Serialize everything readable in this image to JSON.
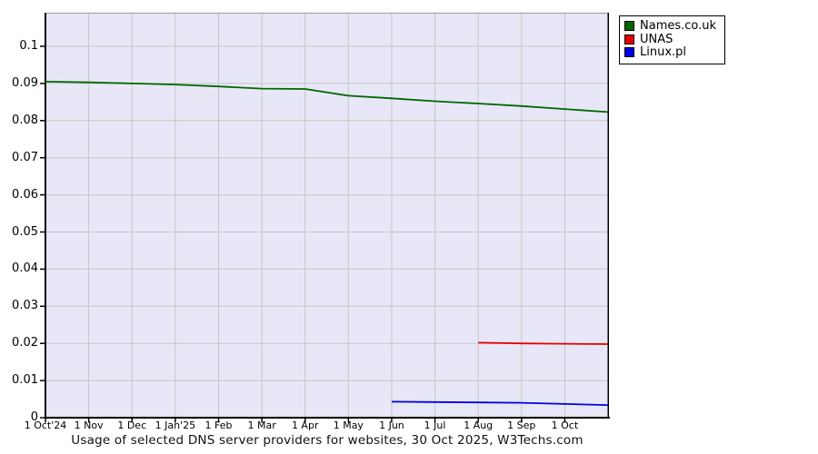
{
  "title": "Usage of selected DNS server providers for websites, 30 Oct 2025, W3Techs.com",
  "legend": {
    "items": [
      {
        "label": "Names.co.uk",
        "color": "#006600"
      },
      {
        "label": "UNAS",
        "color": "#e60000"
      },
      {
        "label": "Linux.pl",
        "color": "#0000e6"
      }
    ]
  },
  "colors": {
    "page_bg": "#ffffff",
    "plot_bg": "#e7e7f7",
    "grid": "#c6c6c6",
    "axis": "#000000",
    "plot_top_border": "#9a9a9a"
  },
  "chart_data": {
    "type": "line",
    "title": "Usage of selected DNS server providers for websites, 30 Oct 2025, W3Techs.com",
    "grid": true,
    "legend_position": "top-right",
    "x_axis": {
      "unit": "months since 1 Oct 2024",
      "tick_positions": [
        0,
        1,
        2,
        3,
        4,
        5,
        6,
        7,
        8,
        9,
        10,
        11,
        12
      ],
      "tick_labels": [
        "1 Oct'24",
        "1 Nov",
        "1 Dec",
        "1 Jan'25",
        "1 Feb",
        "1 Mar",
        "1 Apr",
        "1 May",
        "1 Jun",
        "1 Jul",
        "1 Aug",
        "1 Sep",
        "1 Oct"
      ],
      "max": 13,
      "end_date": "30 Oct 2025"
    },
    "y_axis": {
      "tick_values": [
        0,
        0.01,
        0.02,
        0.03,
        0.04,
        0.05,
        0.06,
        0.07,
        0.08,
        0.09,
        0.1
      ],
      "tick_labels": [
        "0",
        "0.01",
        "0.02",
        "0.03",
        "0.04",
        "0.05",
        "0.06",
        "0.07",
        "0.08",
        "0.09",
        "0.1"
      ],
      "range": [
        0,
        0.109
      ]
    },
    "series": [
      {
        "name": "Names.co.uk",
        "color": "#006600",
        "x": [
          0,
          1,
          2,
          3,
          4,
          5,
          6,
          7,
          8,
          9,
          10,
          11,
          12,
          13
        ],
        "values": [
          0.0905,
          0.0903,
          0.09,
          0.0897,
          0.0892,
          0.0886,
          0.0885,
          0.0867,
          0.086,
          0.0852,
          0.0846,
          0.0839,
          0.0831,
          0.0823
        ]
      },
      {
        "name": "UNAS",
        "color": "#e60000",
        "x": [
          10,
          11,
          12,
          13
        ],
        "values": [
          0.0202,
          0.02,
          0.0199,
          0.0198
        ]
      },
      {
        "name": "Linux.pl",
        "color": "#0000e6",
        "x": [
          8,
          9,
          10,
          11,
          12,
          13
        ],
        "values": [
          0.0043,
          0.0042,
          0.0041,
          0.004,
          0.0037,
          0.0034
        ]
      }
    ]
  }
}
